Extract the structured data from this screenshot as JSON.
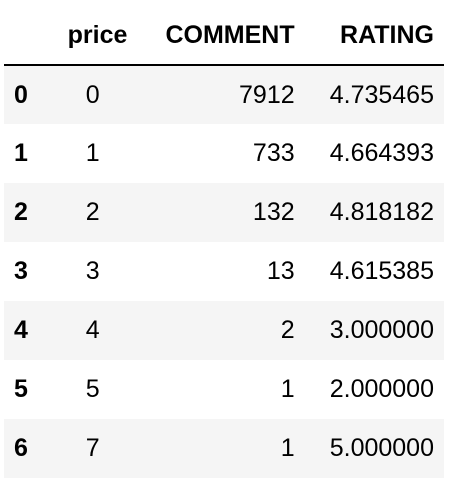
{
  "table": {
    "columns": [
      "price",
      "COMMENT",
      "RATING"
    ],
    "rows": [
      {
        "index": "0",
        "price": "0",
        "comment": "7912",
        "rating": "4.735465"
      },
      {
        "index": "1",
        "price": "1",
        "comment": "733",
        "rating": "4.664393"
      },
      {
        "index": "2",
        "price": "2",
        "comment": "132",
        "rating": "4.818182"
      },
      {
        "index": "3",
        "price": "3",
        "comment": "13",
        "rating": "4.615385"
      },
      {
        "index": "4",
        "price": "4",
        "comment": "2",
        "rating": "3.000000"
      },
      {
        "index": "5",
        "price": "5",
        "comment": "1",
        "rating": "2.000000"
      },
      {
        "index": "6",
        "price": "7",
        "comment": "1",
        "rating": "5.000000"
      }
    ]
  }
}
